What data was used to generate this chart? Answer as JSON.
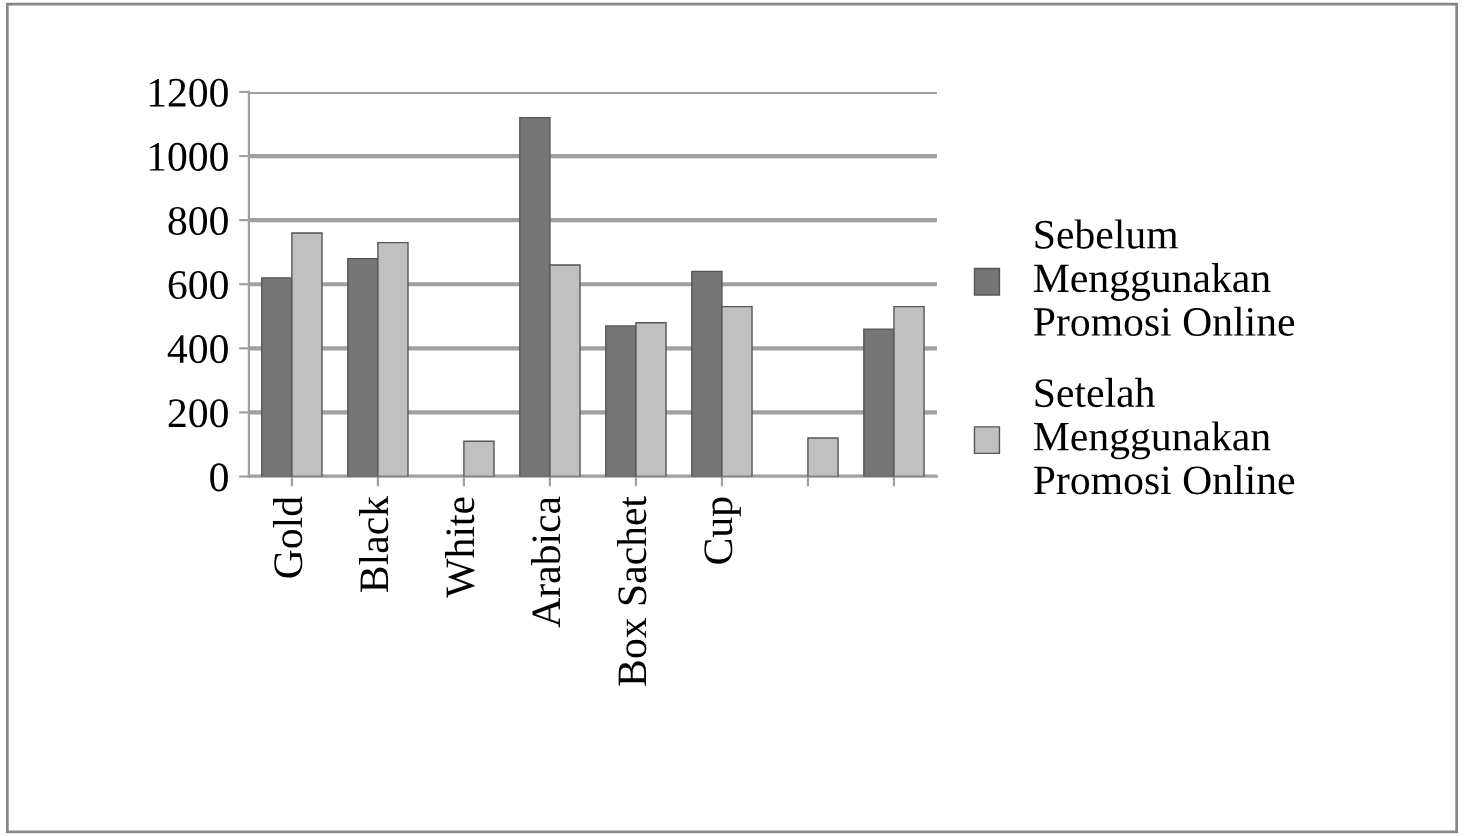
{
  "chart_data": {
    "type": "bar",
    "categories": [
      "Gold",
      "Black",
      "White",
      "Arabica",
      "Box Sachet",
      "Cup",
      null,
      null
    ],
    "series": [
      {
        "name": "Sebelum Menggunakan Promosi Online",
        "color": "#767676",
        "values": [
          620,
          680,
          null,
          1120,
          470,
          640,
          null,
          460
        ]
      },
      {
        "name": "Setelah Menggunakan Promosi Online",
        "color": "#c0c0c0",
        "values": [
          760,
          730,
          110,
          660,
          480,
          530,
          120,
          530
        ]
      }
    ],
    "ylim": [
      0,
      1200
    ],
    "yticks": [
      0,
      200,
      400,
      600,
      800,
      1000,
      1200
    ],
    "grid": "y",
    "legend": "right"
  }
}
